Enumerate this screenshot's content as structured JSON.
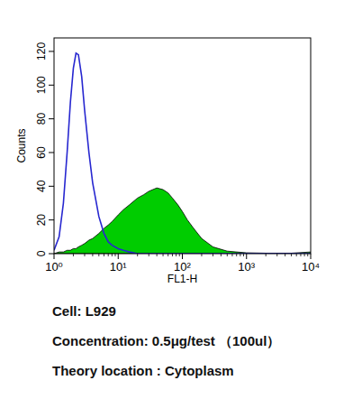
{
  "chart_data": {
    "type": "histogram",
    "x_label": "FL1-H",
    "y_label": "Counts",
    "log": "x",
    "xlim": [
      1,
      10000
    ],
    "xticks": [
      {
        "value": 1,
        "label": "10⁰"
      },
      {
        "value": 10,
        "label": "10¹"
      },
      {
        "value": 100,
        "label": "10²"
      },
      {
        "value": 1000,
        "label": "10³"
      },
      {
        "value": 10000,
        "label": "10⁴"
      }
    ],
    "ylim": [
      0,
      128
    ],
    "yticks": [
      0,
      20,
      40,
      60,
      80,
      100,
      120
    ],
    "x": [
      1,
      1.2,
      1.4,
      1.6,
      1.8,
      2,
      2.2,
      2.4,
      2.7,
      3,
      3.5,
      4,
      5,
      6,
      7,
      8,
      10,
      12,
      15,
      20,
      25,
      30,
      40,
      50,
      60,
      70,
      85,
      100,
      120,
      150,
      200,
      300,
      500,
      1000,
      2000,
      5000,
      10000
    ],
    "series": [
      {
        "type": "line",
        "color": "#2727d0",
        "values": [
          2,
          10,
          30,
          60,
          90,
          110,
          119,
          118,
          105,
          85,
          60,
          42,
          22,
          12,
          7,
          5,
          3,
          2,
          1,
          0,
          0,
          0,
          0,
          0,
          0,
          0,
          0,
          0,
          0,
          0,
          0,
          0,
          0,
          0,
          0,
          0,
          0
        ]
      },
      {
        "type": "area",
        "color": "#00cc00",
        "values": [
          0,
          1,
          1,
          2,
          2,
          3,
          3,
          4,
          5,
          6,
          8,
          9,
          12,
          15,
          17,
          19,
          23,
          26,
          29,
          33,
          35,
          37,
          39,
          38,
          36,
          33,
          29,
          25,
          20,
          15,
          9,
          4,
          1.5,
          0.5,
          0.3,
          0.3,
          1
        ]
      }
    ],
    "annotations": [
      "Cell: L929",
      "Concentration: 0.5μg/test （100ul）",
      "Theory location : Cytoplasm"
    ]
  }
}
